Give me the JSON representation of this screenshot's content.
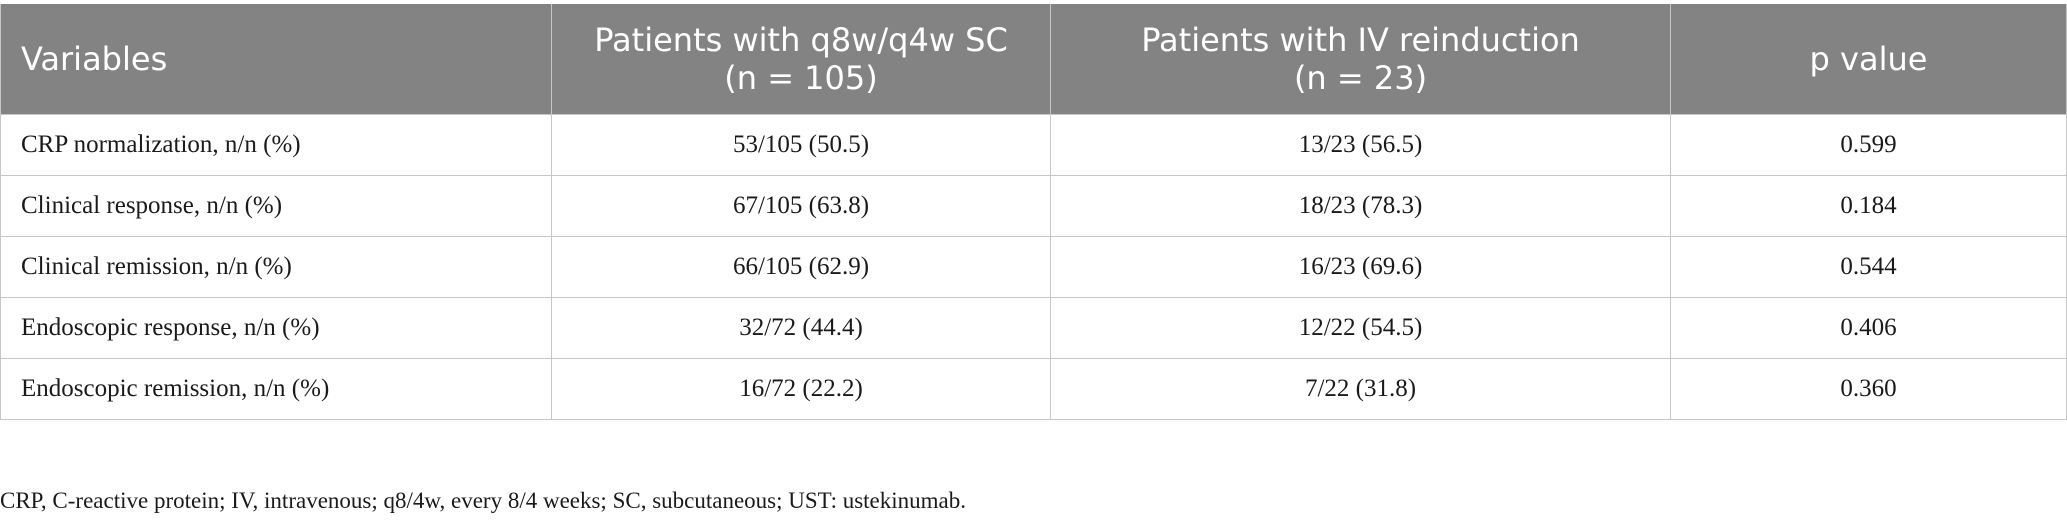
{
  "table": {
    "headers": [
      {
        "line1": "Variables",
        "line2": ""
      },
      {
        "line1": "Patients with q8w/q4w SC",
        "line2": "(n = 105)"
      },
      {
        "line1": "Patients with IV reinduction",
        "line2": "(n = 23)"
      },
      {
        "line1": "p value",
        "line2": ""
      }
    ],
    "rows": [
      {
        "variable": "CRP normalization, n/n (%)",
        "sc": "53/105 (50.5)",
        "iv": "13/23 (56.5)",
        "p": "0.599"
      },
      {
        "variable": "Clinical response, n/n (%)",
        "sc": "67/105 (63.8)",
        "iv": "18/23 (78.3)",
        "p": "0.184"
      },
      {
        "variable": "Clinical remission, n/n (%)",
        "sc": "66/105 (62.9)",
        "iv": "16/23 (69.6)",
        "p": "0.544"
      },
      {
        "variable": "Endoscopic response, n/n (%)",
        "sc": "32/72 (44.4)",
        "iv": "12/22 (54.5)",
        "p": "0.406"
      },
      {
        "variable": "Endoscopic remission, n/n (%)",
        "sc": "16/72 (22.2)",
        "iv": "7/22 (31.8)",
        "p": "0.360"
      }
    ]
  },
  "footnote": "CRP, C-reactive protein; IV, intravenous; q8/4w, every 8/4 weeks; SC, subcutaneous; UST: ustekinumab."
}
